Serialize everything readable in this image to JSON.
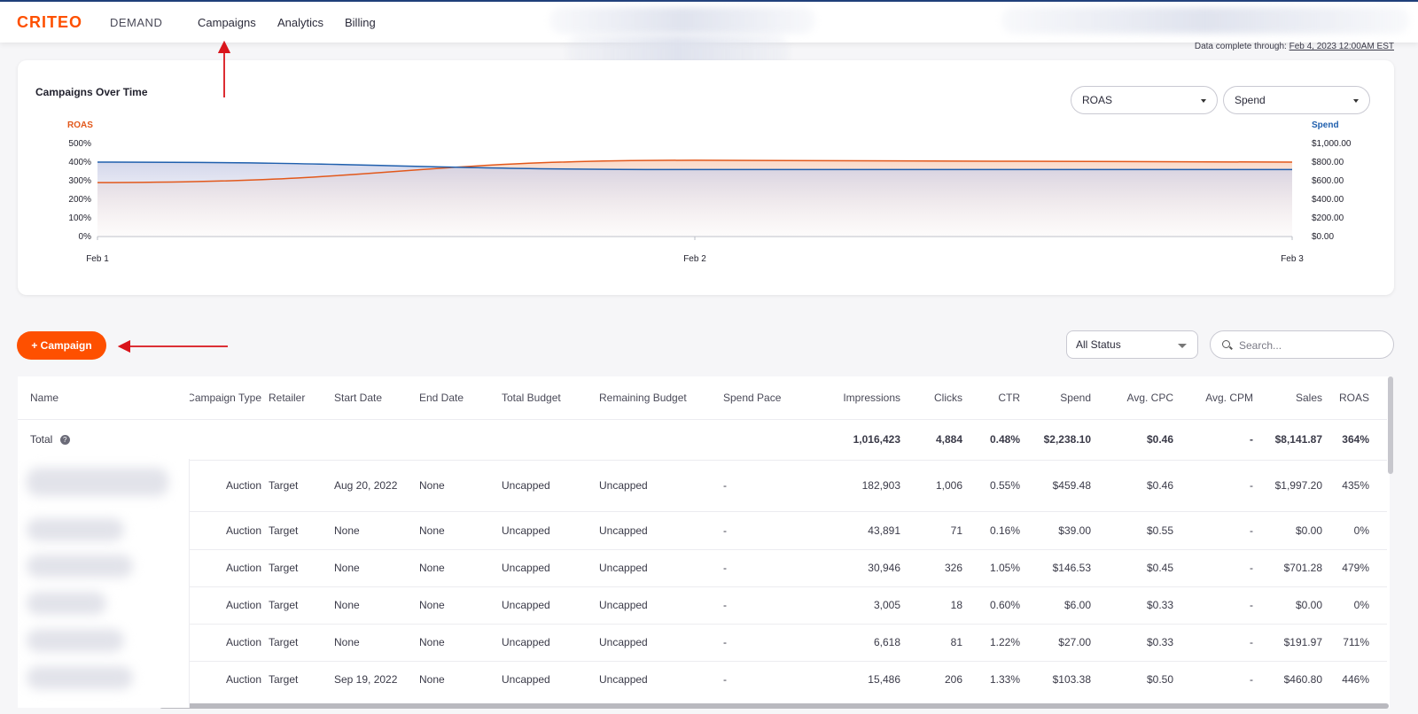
{
  "header": {
    "logo": "CRITEO",
    "product": "DEMAND",
    "nav": [
      "Campaigns",
      "Analytics",
      "Billing"
    ]
  },
  "data_complete": {
    "label": "Data complete through:",
    "date": "Feb 4, 2023 12:00AM EST"
  },
  "chart": {
    "title": "Campaigns Over Time",
    "left_metric_select": "ROAS",
    "right_metric_select": "Spend",
    "left_axis_label": "ROAS",
    "right_axis_label": "Spend",
    "left_ticks": [
      "500%",
      "400%",
      "300%",
      "200%",
      "100%",
      "0%"
    ],
    "right_ticks": [
      "$1,000.00",
      "$800.00",
      "$600.00",
      "$400.00",
      "$200.00",
      "$0.00"
    ],
    "x_ticks": [
      "Feb 1",
      "Feb 2",
      "Feb 3"
    ],
    "colors": {
      "roas": "#1f5fad",
      "spend": "#e2581b"
    }
  },
  "chart_data": {
    "type": "area",
    "x": [
      "Feb 1",
      "Feb 2",
      "Feb 3"
    ],
    "series": [
      {
        "name": "ROAS",
        "axis": "left",
        "unit": "%",
        "values": [
          400,
          360,
          360
        ]
      },
      {
        "name": "Spend",
        "axis": "right",
        "unit": "$",
        "values": [
          580,
          820,
          800
        ]
      }
    ],
    "left_ylim": [
      0,
      500
    ],
    "right_ylim": [
      0,
      1000
    ],
    "grid": false
  },
  "toolbar": {
    "add_button": "+ Campaign",
    "status_select": "All Status",
    "search_placeholder": "Search..."
  },
  "table": {
    "columns": [
      "Name",
      "Campaign Type",
      "Retailer",
      "Start Date",
      "End Date",
      "Total Budget",
      "Remaining Budget",
      "Spend Pace",
      "Impressions",
      "Clicks",
      "CTR",
      "Spend",
      "Avg. CPC",
      "Avg. CPM",
      "Sales",
      "ROAS"
    ],
    "total": {
      "label": "Total",
      "impressions": "1,016,423",
      "clicks": "4,884",
      "ctr": "0.48%",
      "spend": "$2,238.10",
      "cpc": "$0.46",
      "cpm": "-",
      "sales": "$8,141.87",
      "roas": "364%"
    },
    "rows": [
      {
        "type": "Auction",
        "retailer": "Target",
        "start": "Aug 20, 2022",
        "end": "None",
        "budget": "Uncapped",
        "remaining": "Uncapped",
        "pace": "-",
        "impressions": "182,903",
        "clicks": "1,006",
        "ctr": "0.55%",
        "spend": "$459.48",
        "cpc": "$0.46",
        "cpm": "-",
        "sales": "$1,997.20",
        "roas": "435%"
      },
      {
        "type": "Auction",
        "retailer": "Target",
        "start": "None",
        "end": "None",
        "budget": "Uncapped",
        "remaining": "Uncapped",
        "pace": "-",
        "impressions": "43,891",
        "clicks": "71",
        "ctr": "0.16%",
        "spend": "$39.00",
        "cpc": "$0.55",
        "cpm": "-",
        "sales": "$0.00",
        "roas": "0%"
      },
      {
        "type": "Auction",
        "retailer": "Target",
        "start": "None",
        "end": "None",
        "budget": "Uncapped",
        "remaining": "Uncapped",
        "pace": "-",
        "impressions": "30,946",
        "clicks": "326",
        "ctr": "1.05%",
        "spend": "$146.53",
        "cpc": "$0.45",
        "cpm": "-",
        "sales": "$701.28",
        "roas": "479%"
      },
      {
        "type": "Auction",
        "retailer": "Target",
        "start": "None",
        "end": "None",
        "budget": "Uncapped",
        "remaining": "Uncapped",
        "pace": "-",
        "impressions": "3,005",
        "clicks": "18",
        "ctr": "0.60%",
        "spend": "$6.00",
        "cpc": "$0.33",
        "cpm": "-",
        "sales": "$0.00",
        "roas": "0%"
      },
      {
        "type": "Auction",
        "retailer": "Target",
        "start": "None",
        "end": "None",
        "budget": "Uncapped",
        "remaining": "Uncapped",
        "pace": "-",
        "impressions": "6,618",
        "clicks": "81",
        "ctr": "1.22%",
        "spend": "$27.00",
        "cpc": "$0.33",
        "cpm": "-",
        "sales": "$191.97",
        "roas": "711%"
      },
      {
        "type": "Auction",
        "retailer": "Target",
        "start": "Sep 19, 2022",
        "end": "None",
        "budget": "Uncapped",
        "remaining": "Uncapped",
        "pace": "-",
        "impressions": "15,486",
        "clicks": "206",
        "ctr": "1.33%",
        "spend": "$103.38",
        "cpc": "$0.50",
        "cpm": "-",
        "sales": "$460.80",
        "roas": "446%"
      }
    ]
  },
  "colors": {
    "accent": "#fe5000",
    "annotation": "#d9141b"
  }
}
